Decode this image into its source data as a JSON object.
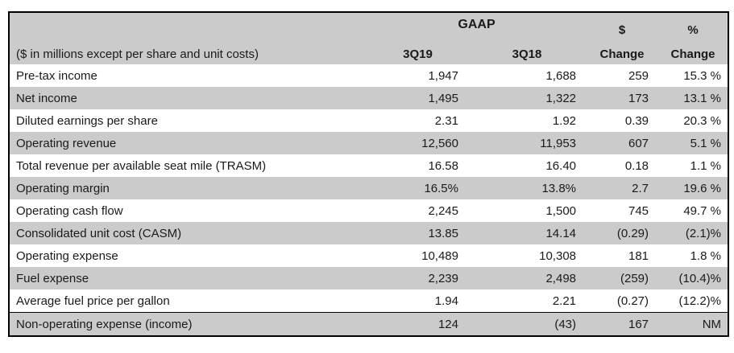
{
  "colors": {
    "row_alt_bg": "#cbcbcb",
    "header_bg": "#cbcbcb",
    "border": "#000000",
    "text": "#1a1a1a"
  },
  "table": {
    "group_header": "GAAP",
    "unit_note": "($ in millions except per share and unit costs)",
    "col_q3_2019": "3Q19",
    "col_q3_2018": "3Q18",
    "dollar_change_line1": "$",
    "dollar_change_line2": "Change",
    "pct_change_line1": "%",
    "pct_change_line2": "Change",
    "rows": [
      {
        "label": "Pre-tax income",
        "q3_19": "1,947",
        "q3_18": "1,688",
        "dollar_change": "259",
        "pct_change": "15.3 %"
      },
      {
        "label": "Net income",
        "q3_19": "1,495",
        "q3_18": "1,322",
        "dollar_change": "173",
        "pct_change": "13.1 %"
      },
      {
        "label": "Diluted earnings per share",
        "q3_19": "2.31",
        "q3_18": "1.92",
        "dollar_change": "0.39",
        "pct_change": "20.3 %"
      },
      {
        "label": "Operating revenue",
        "q3_19": "12,560",
        "q3_18": "11,953",
        "dollar_change": "607",
        "pct_change": "5.1 %"
      },
      {
        "label": "Total revenue per available seat mile (TRASM)",
        "q3_19": "16.58",
        "q3_18": "16.40",
        "dollar_change": "0.18",
        "pct_change": "1.1 %"
      },
      {
        "label": "Operating margin",
        "q3_19": "16.5%",
        "q3_18": "13.8%",
        "dollar_change": "2.7",
        "pct_change": "19.6 %"
      },
      {
        "label": "Operating cash flow",
        "q3_19": "2,245",
        "q3_18": "1,500",
        "dollar_change": "745",
        "pct_change": "49.7 %"
      },
      {
        "label": "Consolidated unit cost (CASM)",
        "q3_19": "13.85",
        "q3_18": "14.14",
        "dollar_change": "(0.29)",
        "pct_change": "(2.1)%"
      },
      {
        "label": "Operating expense",
        "q3_19": "10,489",
        "q3_18": "10,308",
        "dollar_change": "181",
        "pct_change": "1.8 %"
      },
      {
        "label": "Fuel expense",
        "q3_19": "2,239",
        "q3_18": "2,498",
        "dollar_change": "(259)",
        "pct_change": "(10.4)%"
      },
      {
        "label": "Average fuel price per gallon",
        "q3_19": "1.94",
        "q3_18": "2.21",
        "dollar_change": "(0.27)",
        "pct_change": "(12.2)%"
      },
      {
        "label": "Non-operating expense (income)",
        "q3_19": "124",
        "q3_18": "(43)",
        "dollar_change": "167",
        "pct_change": "NM"
      }
    ]
  }
}
